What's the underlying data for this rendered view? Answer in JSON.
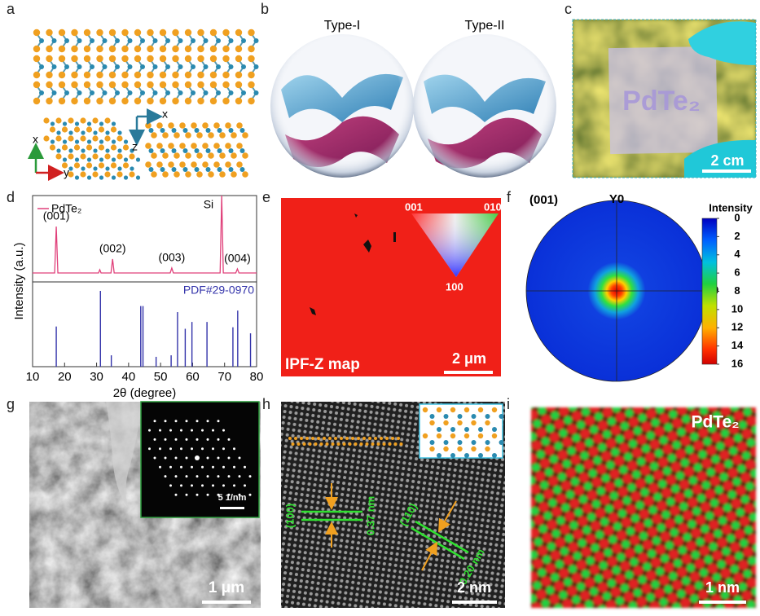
{
  "panels": {
    "a": {
      "label": "a",
      "axes": [
        "x",
        "y",
        "z",
        "x"
      ]
    },
    "b": {
      "label": "b",
      "titles": [
        "Type-I",
        "Type-II"
      ]
    },
    "c": {
      "label": "c",
      "sample_text": "PdTe₂",
      "scale_bar": "2 cm"
    },
    "d": {
      "label": "d"
    },
    "e": {
      "label": "e",
      "inset_labels": [
        "001",
        "010",
        "100"
      ],
      "map_label": "IPF-Z map",
      "scale_bar": "2 μm"
    },
    "f": {
      "label": "f",
      "orientation": "(001)",
      "axis_y": "Y0",
      "axis_x": "X0"
    },
    "g": {
      "label": "g",
      "inset_scale_bar": "5 1/nm",
      "scale_bar": "1 μm"
    },
    "h": {
      "label": "h",
      "plane_1": "(100)",
      "spacing_1": "0.37 nm",
      "plane_2": "(110)",
      "spacing_2": "0.20 nm",
      "scale_bar": "2 nm"
    },
    "i": {
      "label": "i",
      "sample_text": "PdTe₂",
      "scale_bar": "1 nm"
    }
  },
  "chart_data": [
    {
      "type": "xrd",
      "xlabel": "2θ (degree)",
      "ylabel": "Intensity (a.u.)",
      "xlim": [
        10,
        80
      ],
      "xticks": [
        10,
        20,
        30,
        40,
        50,
        60,
        70,
        80
      ],
      "ylim": [
        0,
        100
      ],
      "series": [
        {
          "name": "PdTe₂",
          "type": "line",
          "color": "#e0407a",
          "x": [
            10,
            16.9,
            17.4,
            17.9,
            30.6,
            31,
            31.4,
            34.5,
            35,
            35.5,
            53,
            53.5,
            54,
            68.6,
            69.1,
            69.6,
            73.5,
            74,
            74.5,
            80
          ],
          "values": [
            5,
            5,
            62,
            5,
            5,
            9,
            5,
            5,
            22,
            5,
            5,
            11,
            5,
            5,
            100,
            5,
            5,
            10,
            5,
            5
          ]
        },
        {
          "name": "PDF#29-0970",
          "type": "stem",
          "color": "#3333aa",
          "x": [
            17.4,
            31.2,
            34.6,
            43.8,
            44.5,
            48.6,
            53.3,
            55.3,
            57.7,
            59.8,
            64.5,
            72.6,
            74.1,
            78.1
          ],
          "values": [
            53,
            100,
            15,
            80,
            80,
            13,
            15,
            72,
            50,
            59,
            59,
            52,
            74,
            44
          ]
        }
      ],
      "annotations": [
        {
          "text": "(001)",
          "x": 17.4
        },
        {
          "text": "(002)",
          "x": 35
        },
        {
          "text": "(003)",
          "x": 53.5
        },
        {
          "text": "Si",
          "x": 69.1
        },
        {
          "text": "(004)",
          "x": 74
        }
      ]
    },
    {
      "type": "colorbar",
      "title": "Intensity",
      "colormap": "jet",
      "inverted": true,
      "ylim": [
        0,
        16
      ],
      "yticks": [
        0,
        2,
        4,
        6,
        8,
        10,
        12,
        14,
        16
      ]
    }
  ]
}
